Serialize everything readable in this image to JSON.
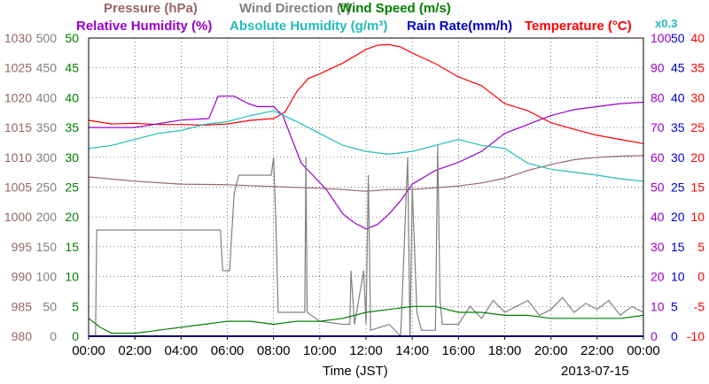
{
  "header": {
    "pressure": "Pressure (hPa)",
    "wind_direction": "Wind Direction (°)",
    "wind_speed": "Wind Speed (m/s)",
    "relative_humidity": "Relative Humidity (%)",
    "absolute_humidity": "Absolute Humidity (g/m³)",
    "rain_rate": "Rain Rate(mm/h)",
    "temperature": "Temperature (°C)",
    "rain_scale": "x0.3"
  },
  "x_axis": {
    "label": "Time (JST)",
    "date": "2013-07-15",
    "ticks": [
      "00:00",
      "02:00",
      "04:00",
      "06:00",
      "08:00",
      "10:00",
      "12:00",
      "14:00",
      "16:00",
      "18:00",
      "20:00",
      "22:00",
      "00:00"
    ]
  },
  "colors": {
    "pressure": "#996666",
    "wind_direction": "#808080",
    "wind_speed": "#008000",
    "relative_humidity": "#9900cc",
    "absolute_humidity": "#22bbbb",
    "rain_rate": "#0000cc",
    "temperature": "#ff0000"
  },
  "chart_data": {
    "type": "line",
    "xlabel": "Time (JST)",
    "x_unit": "hours",
    "xlim": [
      0,
      24
    ],
    "grid": true,
    "axes": {
      "pressure": {
        "ticks": [
          980,
          985,
          990,
          995,
          1000,
          1005,
          1010,
          1015,
          1020,
          1025,
          1030
        ],
        "ylim": [
          980,
          1030
        ]
      },
      "wind_direction": {
        "ticks": [
          0,
          50,
          100,
          150,
          200,
          250,
          300,
          350,
          400,
          450,
          500
        ],
        "ylim": [
          0,
          500
        ]
      },
      "wind_speed": {
        "ticks": [
          0,
          5,
          10,
          15,
          20,
          25,
          30,
          35,
          40,
          45,
          50
        ],
        "ylim": [
          0,
          50
        ]
      },
      "relative_humidity": {
        "ticks": [
          0,
          10,
          20,
          30,
          40,
          50,
          60,
          70,
          80,
          90,
          100
        ],
        "ylim": [
          0,
          100
        ]
      },
      "rain_rate": {
        "ticks": [
          0,
          5,
          10,
          15,
          20,
          25,
          30,
          35,
          40,
          45,
          50
        ],
        "ylim": [
          0,
          50
        ]
      },
      "temperature": {
        "ticks": [
          -10,
          -5,
          0,
          5,
          10,
          15,
          20,
          25,
          30,
          35,
          40
        ],
        "ylim": [
          -10,
          40
        ]
      }
    },
    "series": [
      {
        "name": "Pressure (hPa)",
        "axis": "pressure",
        "x": [
          0,
          2,
          4,
          6,
          8,
          10,
          11,
          12,
          13,
          14,
          15,
          16,
          17,
          18,
          19,
          20,
          21,
          22,
          23,
          24
        ],
        "y": [
          1006.7,
          1006.0,
          1005.5,
          1005.4,
          1005.1,
          1004.8,
          1004.6,
          1004.3,
          1004.6,
          1004.6,
          1004.9,
          1005.2,
          1005.7,
          1006.5,
          1007.8,
          1008.8,
          1009.6,
          1010.0,
          1010.2,
          1010.3
        ]
      },
      {
        "name": "Temperature (°C)",
        "axis": "temperature",
        "x": [
          0,
          1,
          2,
          3,
          4,
          5,
          6,
          7,
          8,
          8.5,
          9,
          9.5,
          10,
          11,
          12,
          12.5,
          13,
          13.5,
          14,
          15,
          16,
          17,
          18,
          19,
          20,
          21,
          22,
          23,
          24
        ],
        "y": [
          26.2,
          25.6,
          25.7,
          25.5,
          25.5,
          25.4,
          25.6,
          26.2,
          26.5,
          27.6,
          31.0,
          33.2,
          34.0,
          35.8,
          38.1,
          38.8,
          38.9,
          38.5,
          37.5,
          35.7,
          33.5,
          32.0,
          29.0,
          27.8,
          25.8,
          24.7,
          23.7,
          23.0,
          22.3
        ]
      },
      {
        "name": "Relative Humidity (%)",
        "axis": "relative_humidity",
        "x": [
          0,
          2,
          4,
          5.2,
          5.6,
          6.3,
          6.9,
          7.3,
          8,
          8.4,
          8.8,
          9.2,
          9.7,
          10.3,
          11,
          11.5,
          12,
          12.5,
          13,
          13.5,
          14,
          15,
          16,
          17,
          18,
          19,
          20,
          21,
          22,
          23,
          24
        ],
        "y": [
          70,
          70,
          72.5,
          73,
          80.5,
          80.5,
          78,
          77,
          77,
          74,
          66,
          58,
          54,
          49,
          41,
          38,
          36,
          37.5,
          41,
          45.5,
          51,
          55.6,
          58.3,
          62,
          68,
          71,
          74,
          76,
          77,
          78,
          78.5
        ]
      },
      {
        "name": "Absolute Humidity (g/m³)",
        "axis": "wind_speed",
        "x": [
          0,
          1,
          2,
          3,
          4,
          5,
          6,
          7,
          8,
          9,
          10,
          11,
          12,
          13,
          14,
          15,
          16,
          17,
          18,
          19,
          20,
          21,
          22,
          23,
          24
        ],
        "y": [
          31.5,
          32,
          33,
          34,
          34.5,
          35.5,
          36,
          37,
          37.8,
          36,
          34,
          32,
          31,
          30.5,
          31,
          32,
          33,
          32,
          31.5,
          29,
          28,
          27.5,
          27,
          26.4,
          26
        ]
      },
      {
        "name": "Wind Direction (°)",
        "axis": "wind_direction",
        "x": [
          0,
          0.3,
          0.35,
          1,
          2,
          3,
          4,
          5,
          5.7,
          5.8,
          6.1,
          6.2,
          6.3,
          6.5,
          7,
          7.9,
          8,
          8.1,
          8.2,
          9,
          9.35,
          9.4,
          9.45,
          10,
          11,
          11.3,
          11.35,
          11.5,
          11.9,
          12,
          12.1,
          12.2,
          13,
          13.5,
          13.8,
          13.9,
          14,
          14.2,
          14.4,
          15,
          15.1,
          15.2,
          15.3,
          16,
          16.5,
          17,
          17.5,
          18,
          18.5,
          19,
          19.5,
          20,
          20.5,
          21,
          21.5,
          22,
          22.5,
          23,
          23.5,
          24
        ],
        "y": [
          0,
          0,
          178,
          178,
          178,
          178,
          178,
          178,
          178,
          110,
          110,
          178,
          240,
          270,
          270,
          270,
          300,
          190,
          40,
          40,
          40,
          300,
          40,
          25,
          20,
          20,
          110,
          20,
          110,
          20,
          270,
          10,
          20,
          0,
          300,
          0,
          250,
          40,
          10,
          10,
          320,
          60,
          20,
          20,
          50,
          30,
          60,
          40,
          50,
          60,
          35,
          45,
          65,
          40,
          55,
          45,
          60,
          35,
          50,
          40
        ]
      },
      {
        "name": "Wind Speed (m/s)",
        "axis": "wind_speed",
        "x": [
          0,
          0.5,
          1,
          2,
          3,
          4,
          5,
          6,
          7,
          8,
          9,
          10,
          11,
          12,
          13,
          14,
          15,
          16,
          17,
          18,
          19,
          20,
          21,
          22,
          23,
          24
        ],
        "y": [
          3,
          1.5,
          0.5,
          0.5,
          1,
          1.5,
          2,
          2.5,
          2.5,
          2,
          2.5,
          2.5,
          3,
          4,
          4.5,
          5,
          5,
          4,
          4,
          3.5,
          3.5,
          3,
          3,
          3,
          3,
          3.5
        ]
      },
      {
        "name": "Rain Rate(mm/h)",
        "axis": "rain_rate",
        "x": [
          0,
          24
        ],
        "y": [
          0,
          0
        ]
      }
    ]
  }
}
